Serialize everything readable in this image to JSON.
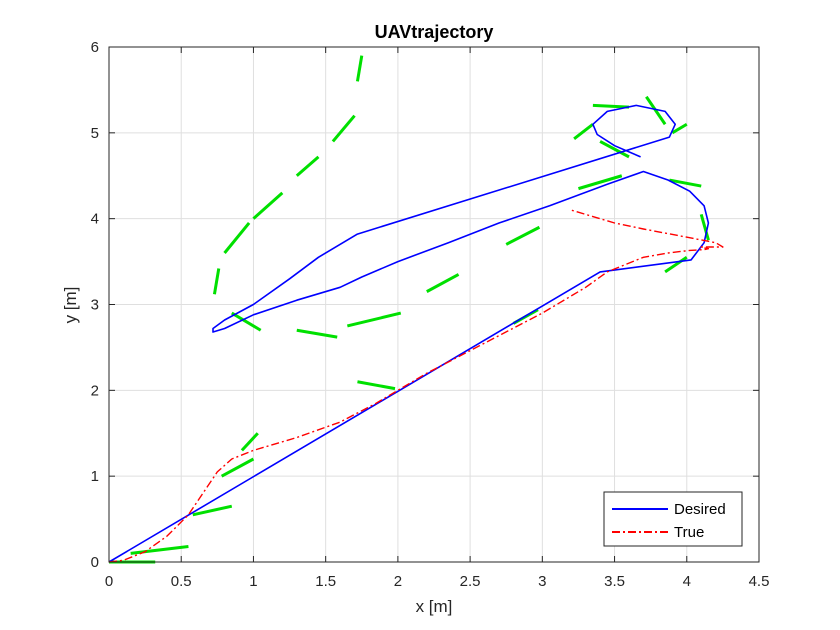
{
  "chart_data": {
    "type": "line",
    "title": "UAVtrajectory",
    "xlabel": "x [m]",
    "ylabel": "y [m]",
    "xlim": [
      0,
      4.5
    ],
    "ylim": [
      0,
      6
    ],
    "xticks": [
      "0",
      "0.5",
      "1",
      "1.5",
      "2",
      "2.5",
      "3",
      "3.5",
      "4",
      "4.5"
    ],
    "yticks": [
      "0",
      "1",
      "2",
      "3",
      "4",
      "5",
      "6"
    ],
    "grid": true,
    "legend_position": "bottom-right",
    "series": [
      {
        "name": "Desired",
        "color": "#0000ff",
        "style": "solid",
        "x": [
          0.0,
          3.4,
          4.03,
          4.12,
          4.15,
          4.12,
          4.02,
          3.87,
          3.7,
          3.45,
          3.05,
          2.7,
          2.35,
          2.0,
          1.75,
          1.6,
          1.3,
          1.0,
          0.8,
          0.72,
          0.72,
          0.8,
          1.0,
          1.25,
          1.45,
          1.72,
          3.88,
          3.92,
          3.85,
          3.65,
          3.45,
          3.35,
          3.38,
          3.5,
          3.68
        ],
        "y": [
          0.0,
          3.38,
          3.52,
          3.72,
          3.95,
          4.15,
          4.32,
          4.45,
          4.55,
          4.4,
          4.15,
          3.95,
          3.72,
          3.5,
          3.32,
          3.2,
          3.05,
          2.88,
          2.72,
          2.68,
          2.72,
          2.82,
          3.0,
          3.3,
          3.55,
          3.82,
          4.95,
          5.1,
          5.25,
          5.32,
          5.25,
          5.1,
          4.98,
          4.85,
          4.72
        ]
      },
      {
        "name": "True",
        "color": "#ff0000",
        "style": "dashdot",
        "x": [
          0.0,
          0.1,
          0.25,
          0.4,
          0.55,
          0.65,
          0.75,
          0.85,
          1.0,
          1.3,
          1.6,
          1.85,
          2.0,
          2.2,
          2.6,
          3.0,
          3.3,
          3.45,
          3.7,
          3.87,
          4.02,
          4.12,
          4.15,
          4.12,
          4.1,
          4.25,
          4.2,
          3.95,
          3.7,
          3.5,
          3.4,
          3.2
        ],
        "y": [
          0.0,
          0.02,
          0.12,
          0.3,
          0.55,
          0.8,
          1.05,
          1.2,
          1.3,
          1.45,
          1.63,
          1.85,
          2.0,
          2.2,
          2.55,
          2.9,
          3.2,
          3.38,
          3.55,
          3.6,
          3.63,
          3.64,
          3.65,
          3.66,
          3.67,
          3.67,
          3.72,
          3.8,
          3.88,
          3.95,
          4.0,
          4.1
        ]
      }
    ],
    "orientation_markers": {
      "name": "",
      "color": "#00e000",
      "segments": [
        [
          0.0,
          0.0,
          0.32,
          0.0
        ],
        [
          0.15,
          0.1,
          0.55,
          0.18
        ],
        [
          0.58,
          0.55,
          0.85,
          0.65
        ],
        [
          0.78,
          1.0,
          1.0,
          1.2
        ],
        [
          0.92,
          1.3,
          1.03,
          1.5
        ],
        [
          1.72,
          2.1,
          1.98,
          2.02
        ],
        [
          1.05,
          2.7,
          0.85,
          2.9
        ],
        [
          1.3,
          2.7,
          1.58,
          2.62
        ],
        [
          1.65,
          2.75,
          2.02,
          2.9
        ],
        [
          0.73,
          3.12,
          0.76,
          3.42
        ],
        [
          0.8,
          3.6,
          0.97,
          3.95
        ],
        [
          1.0,
          4.0,
          1.2,
          4.3
        ],
        [
          1.3,
          4.5,
          1.45,
          4.72
        ],
        [
          1.55,
          4.9,
          1.7,
          5.2
        ],
        [
          1.72,
          5.6,
          1.75,
          5.9
        ],
        [
          2.2,
          3.15,
          2.42,
          3.35
        ],
        [
          2.75,
          3.7,
          2.98,
          3.9
        ],
        [
          3.25,
          4.35,
          3.55,
          4.5
        ],
        [
          3.6,
          5.3,
          3.35,
          5.32
        ],
        [
          3.35,
          5.1,
          3.22,
          4.93
        ],
        [
          3.4,
          4.9,
          3.6,
          4.72
        ],
        [
          3.72,
          5.42,
          3.85,
          5.1
        ],
        [
          3.9,
          5.0,
          4.0,
          5.1
        ],
        [
          3.88,
          4.45,
          4.1,
          4.38
        ],
        [
          4.1,
          4.05,
          4.15,
          3.75
        ],
        [
          3.85,
          3.38,
          4.0,
          3.55
        ],
        [
          2.8,
          2.78,
          2.97,
          2.94
        ]
      ]
    }
  }
}
